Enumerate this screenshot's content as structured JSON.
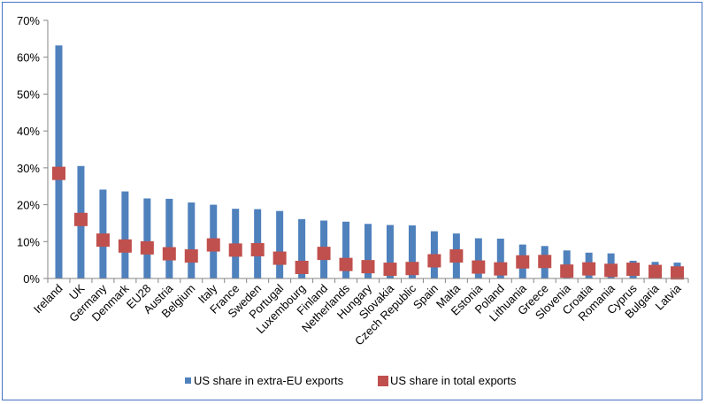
{
  "chart_data": {
    "type": "bar",
    "title": "",
    "xlabel": "",
    "ylabel": "",
    "ylim": [
      0,
      70
    ],
    "yticks": [
      "0%",
      "10%",
      "20%",
      "30%",
      "40%",
      "50%",
      "60%",
      "70%"
    ],
    "grid": false,
    "legend_position": "bottom",
    "categories": [
      "Ireland",
      "UK",
      "Germany",
      "Denmark",
      "EU28",
      "Austria",
      "Belgium",
      "Italy",
      "France",
      "Sweden",
      "Portugal",
      "Luxembourg",
      "Finland",
      "Netherlands",
      "Hungary",
      "Slovakia",
      "Czech Republic",
      "Spain",
      "Malta",
      "Estonia",
      "Poland",
      "Lithuania",
      "Greece",
      "Slovenia",
      "Croatia",
      "Romania",
      "Cyprus",
      "Bulgaria",
      "Latvia"
    ],
    "series": [
      {
        "name": "US share in extra-EU exports",
        "mark": "bar",
        "color": "#4f81bd",
        "values": [
          63.2,
          30.5,
          24.1,
          23.6,
          21.7,
          21.6,
          20.6,
          20.0,
          18.9,
          18.8,
          18.3,
          16.1,
          15.7,
          15.4,
          14.8,
          14.5,
          14.4,
          12.8,
          12.2,
          10.9,
          10.8,
          9.2,
          8.8,
          7.6,
          7.0,
          6.8,
          4.8,
          4.5,
          4.3
        ]
      },
      {
        "name": "US share in total exports",
        "mark": "square",
        "color": "#c0504d",
        "values": [
          28.5,
          16.0,
          10.4,
          8.8,
          8.3,
          6.7,
          6.1,
          9.1,
          7.7,
          7.8,
          5.5,
          3.0,
          6.8,
          3.8,
          3.2,
          2.5,
          2.7,
          4.8,
          6.1,
          3.1,
          2.6,
          4.5,
          4.6,
          2.0,
          2.6,
          2.2,
          2.5,
          1.9,
          1.5
        ]
      }
    ]
  }
}
